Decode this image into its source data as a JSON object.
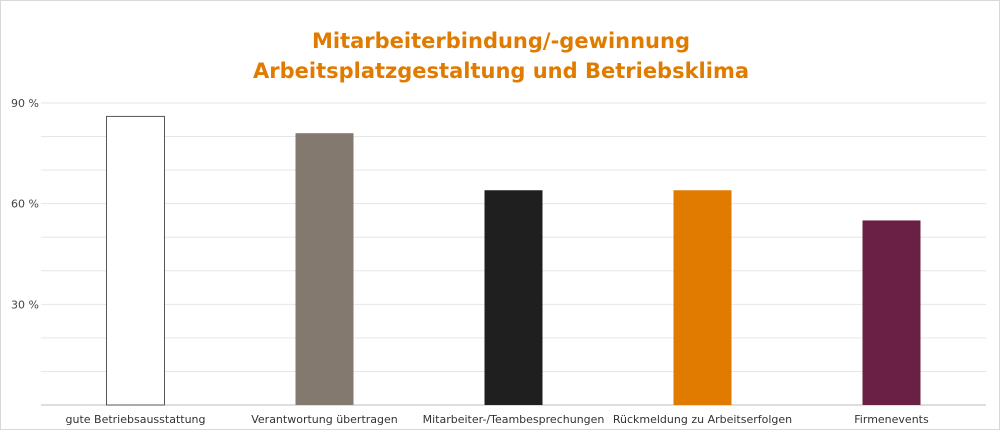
{
  "chart_data": {
    "type": "bar",
    "title": [
      "Mitarbeiterbindung/-gewinnung",
      "Arbeitsplatzgestaltung und Betriebsklima"
    ],
    "categories": [
      "gute Betriebsausstattung",
      "Verantwortung übertragen",
      "Mitarbeiter-/Teambesprechungen",
      "Rückmeldung zu Arbeitserfolgen",
      "Firmenevents"
    ],
    "values": [
      86,
      81,
      64,
      64,
      55
    ],
    "colors": [
      "#ffffff",
      "#83796f",
      "#1f1f1f",
      "#e07b00",
      "#6a1f45"
    ],
    "ylim": [
      0,
      90
    ],
    "yticks": [
      30,
      60,
      90
    ],
    "ytick_labels": [
      "30 %",
      "60 %",
      "90 %"
    ],
    "grid": true
  }
}
